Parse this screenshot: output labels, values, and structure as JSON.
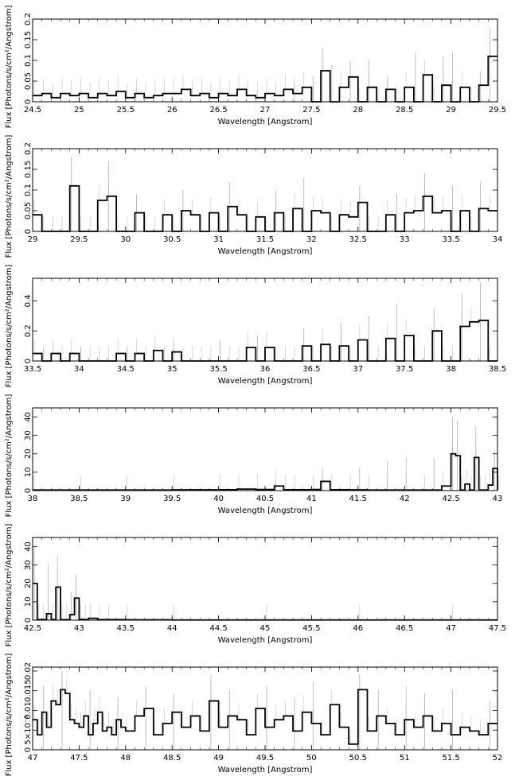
{
  "chart_data": [
    {
      "type": "line",
      "xlabel": "Wavelength [Angstrom]",
      "ylabel": "Flux [Photons/s/cm²/Angstrom]",
      "xlim": [
        24.5,
        29.5
      ],
      "ylim": [
        0,
        0.2
      ],
      "xticks": [
        "24.5",
        "25",
        "25.5",
        "26",
        "26.5",
        "27",
        "27.5",
        "28",
        "28.5",
        "29",
        "29.5"
      ],
      "yticks": [
        "0",
        "0.05",
        "0.1",
        "0.15",
        "0.2"
      ],
      "series": [
        {
          "x": [
            24.5,
            24.6,
            24.7,
            24.8,
            24.9,
            25.0,
            25.1,
            25.2,
            25.3,
            25.4,
            25.5,
            25.6,
            25.7,
            25.8,
            25.9,
            26.0,
            26.1,
            26.2,
            26.3,
            26.4,
            26.5,
            26.6,
            26.7,
            26.8,
            26.9,
            27.0,
            27.1,
            27.2,
            27.3,
            27.4,
            27.5,
            27.6,
            27.7,
            27.8,
            27.9,
            28.0,
            28.1,
            28.2,
            28.3,
            28.4,
            28.5,
            28.6,
            28.7,
            28.8,
            28.9,
            29.0,
            29.1,
            29.2,
            29.3,
            29.4
          ],
          "y": [
            0.015,
            0.02,
            0.01,
            0.02,
            0.015,
            0.02,
            0.01,
            0.02,
            0.015,
            0.025,
            0.01,
            0.02,
            0.01,
            0.015,
            0.02,
            0.02,
            0.03,
            0.015,
            0.02,
            0.01,
            0.02,
            0.015,
            0.03,
            0.015,
            0.01,
            0.02,
            0.015,
            0.03,
            0.02,
            0.035,
            0.0,
            0.075,
            0.0,
            0.035,
            0.06,
            0.0,
            0.035,
            0.0,
            0.03,
            0.0,
            0.035,
            0.0,
            0.065,
            0.0,
            0.04,
            0.0,
            0.035,
            0.0,
            0.04,
            0.11
          ]
        }
      ],
      "errors": {
        "x": [
          27.3,
          27.5,
          27.6,
          27.7,
          27.9,
          28.1,
          28.3,
          28.6,
          28.9,
          29.0,
          29.3,
          29.4
        ],
        "upper": [
          0.045,
          0.06,
          0.13,
          0.09,
          0.1,
          0.1,
          0.06,
          0.12,
          0.11,
          0.12,
          0.07,
          0.18
        ]
      }
    },
    {
      "type": "line",
      "xlabel": "Wavelength [Angstrom]",
      "ylabel": "Flux [Photons/s/cm²/Angstrom]",
      "xlim": [
        29,
        34
      ],
      "ylim": [
        0,
        0.2
      ],
      "xticks": [
        "29",
        "29.5",
        "30",
        "30.5",
        "31",
        "31.5",
        "32",
        "32.5",
        "33",
        "33.5",
        "34"
      ],
      "yticks": [
        "0",
        "0.05",
        "0.1",
        "0.15",
        "0.2"
      ],
      "series": [
        {
          "x": [
            29.0,
            29.1,
            29.2,
            29.3,
            29.4,
            29.5,
            29.6,
            29.7,
            29.8,
            29.9,
            30.0,
            30.1,
            30.2,
            30.3,
            30.4,
            30.5,
            30.6,
            30.7,
            30.8,
            30.9,
            31.0,
            31.1,
            31.2,
            31.3,
            31.4,
            31.5,
            31.6,
            31.7,
            31.8,
            31.9,
            32.0,
            32.1,
            32.2,
            32.3,
            32.4,
            32.5,
            32.6,
            32.7,
            32.8,
            32.9,
            33.0,
            33.1,
            33.2,
            33.3,
            33.4,
            33.5,
            33.6,
            33.7,
            33.8,
            33.9
          ],
          "y": [
            0.04,
            0.0,
            0.0,
            0.0,
            0.11,
            0.0,
            0.0,
            0.075,
            0.085,
            0.0,
            0.0,
            0.045,
            0.0,
            0.0,
            0.04,
            0.0,
            0.05,
            0.04,
            0.0,
            0.045,
            0.0,
            0.06,
            0.04,
            0.0,
            0.035,
            0.0,
            0.045,
            0.0,
            0.055,
            0.0,
            0.05,
            0.045,
            0.0,
            0.04,
            0.035,
            0.07,
            0.0,
            0.0,
            0.04,
            0.0,
            0.045,
            0.05,
            0.085,
            0.045,
            0.05,
            0.0,
            0.05,
            0.0,
            0.055,
            0.05
          ]
        }
      ],
      "errors": {
        "x": [
          29.4,
          29.8,
          30.1,
          30.6,
          31.1,
          31.6,
          31.9,
          32.5,
          32.9,
          33.2,
          33.5,
          33.8
        ],
        "upper": [
          0.18,
          0.17,
          0.09,
          0.1,
          0.12,
          0.1,
          0.13,
          0.11,
          0.09,
          0.14,
          0.11,
          0.12
        ]
      }
    },
    {
      "type": "line",
      "xlabel": "Wavelength [Angstrom]",
      "ylabel": "Flux [Photons/s/cm²/Angstrom]",
      "xlim": [
        33.5,
        38.5
      ],
      "ylim": [
        0,
        0.55
      ],
      "xticks": [
        "33.5",
        "34",
        "34.5",
        "35",
        "35.5",
        "36",
        "36.5",
        "37",
        "37.5",
        "38",
        "38.5"
      ],
      "yticks": [
        "0",
        "0.2",
        "0.4"
      ],
      "series": [
        {
          "x": [
            33.5,
            33.6,
            33.7,
            33.8,
            33.9,
            34.0,
            34.1,
            34.2,
            34.3,
            34.4,
            34.5,
            34.6,
            34.7,
            34.8,
            34.9,
            35.0,
            35.1,
            35.2,
            35.3,
            35.4,
            35.5,
            35.6,
            35.7,
            35.8,
            35.9,
            36.0,
            36.1,
            36.2,
            36.3,
            36.4,
            36.5,
            36.6,
            36.7,
            36.8,
            36.9,
            37.0,
            37.1,
            37.2,
            37.3,
            37.4,
            37.5,
            37.6,
            37.7,
            37.8,
            37.9,
            38.0,
            38.1,
            38.2,
            38.3,
            38.4
          ],
          "y": [
            0.05,
            0.0,
            0.05,
            0.0,
            0.05,
            0.0,
            0.0,
            0.0,
            0.0,
            0.05,
            0.0,
            0.05,
            0.0,
            0.07,
            0.0,
            0.06,
            0.0,
            0.0,
            0.0,
            0.0,
            0.0,
            0.0,
            0.0,
            0.09,
            0.0,
            0.09,
            0.0,
            0.0,
            0.0,
            0.1,
            0.0,
            0.11,
            0.0,
            0.1,
            0.0,
            0.14,
            0.0,
            0.0,
            0.15,
            0.0,
            0.17,
            0.0,
            0.0,
            0.2,
            0.0,
            0.0,
            0.23,
            0.26,
            0.27,
            0.0
          ]
        }
      ],
      "errors": {
        "x": [
          33.6,
          34.0,
          34.5,
          35.0,
          35.5,
          35.9,
          36.4,
          36.8,
          37.1,
          37.4,
          37.8,
          38.1,
          38.3
        ],
        "upper": [
          0.08,
          0.09,
          0.1,
          0.12,
          0.14,
          0.17,
          0.22,
          0.26,
          0.3,
          0.38,
          0.35,
          0.45,
          0.52
        ]
      }
    },
    {
      "type": "line",
      "xlabel": "Wavelength [Angstrom]",
      "ylabel": "Flux [Photons/s/cm²/Angstrom]",
      "xlim": [
        38,
        43
      ],
      "ylim": [
        0,
        45
      ],
      "xticks": [
        "38",
        "38.5",
        "39",
        "39.5",
        "40",
        "40.5",
        "41",
        "41.5",
        "42",
        "42.5",
        "43"
      ],
      "yticks": [
        "0",
        "10",
        "20",
        "30",
        "40"
      ],
      "series": [
        {
          "x": [
            38.0,
            38.5,
            39.0,
            39.5,
            40.0,
            40.2,
            40.4,
            40.6,
            40.7,
            40.8,
            41.0,
            41.1,
            41.2,
            41.4,
            41.6,
            41.8,
            42.0,
            42.2,
            42.4,
            42.5,
            42.55,
            42.6,
            42.65,
            42.7,
            42.75,
            42.8,
            42.85,
            42.9,
            42.95,
            43.0
          ],
          "y": [
            0.3,
            0.3,
            0.3,
            0.4,
            0.5,
            0.8,
            0.6,
            2.5,
            0.5,
            0.5,
            0.6,
            5.0,
            0.5,
            0.4,
            0.3,
            0.3,
            0.3,
            0.3,
            2.5,
            20.0,
            19.0,
            0.3,
            3.5,
            0.3,
            18.0,
            0.3,
            0.3,
            3.0,
            12.0,
            0.3
          ]
        }
      ],
      "errors": {
        "x": [
          40.6,
          41.1,
          41.5,
          41.8,
          42.0,
          42.3,
          42.5,
          42.55,
          42.75,
          42.95
        ],
        "upper": [
          4,
          10,
          12,
          16,
          18,
          18,
          40,
          38,
          35,
          22
        ]
      }
    },
    {
      "type": "line",
      "xlabel": "Wavelength [Angstrom]",
      "ylabel": "Flux [Photons/s/cm²/Angstrom]",
      "xlim": [
        42.5,
        47.5
      ],
      "ylim": [
        0,
        45
      ],
      "xticks": [
        "42.5",
        "43",
        "43.5",
        "44",
        "44.5",
        "45",
        "45.5",
        "46",
        "46.5",
        "47",
        "47.5"
      ],
      "yticks": [
        "0",
        "10",
        "20",
        "30",
        "40"
      ],
      "series": [
        {
          "x": [
            42.5,
            42.55,
            42.6,
            42.65,
            42.7,
            42.75,
            42.8,
            42.85,
            42.9,
            42.95,
            43.0,
            43.05,
            43.1,
            43.2,
            43.3,
            43.5,
            44.0,
            45.0,
            46.0,
            47.0
          ],
          "y": [
            20.0,
            0.3,
            0.3,
            3.5,
            0.3,
            18.0,
            0.3,
            0.3,
            3.0,
            12.0,
            0.5,
            0.3,
            1.0,
            0.3,
            0.3,
            0.2,
            0.1,
            0.1,
            0.1,
            0.1
          ]
        }
      ],
      "errors": {
        "x": [
          42.5,
          42.65,
          42.75,
          42.9,
          42.95
        ],
        "upper": [
          40,
          30,
          35,
          15,
          25
        ]
      }
    },
    {
      "type": "line",
      "xlabel": "Wavelength [Angstrom]",
      "ylabel": "Flux [Photons/s/cm²/Angstrom]",
      "xlim": [
        47,
        52
      ],
      "ylim": [
        0,
        0.022
      ],
      "xticks": [
        "47",
        "47.5",
        "48",
        "48.5",
        "49",
        "49.5",
        "50",
        "50.5",
        "51",
        "51.5",
        "52"
      ],
      "yticks": [
        "0",
        "5×10⁻³",
        "0.01",
        "0.015",
        "0.02"
      ],
      "series": [
        {
          "x": [
            47.0,
            47.05,
            47.1,
            47.15,
            47.2,
            47.25,
            47.3,
            47.35,
            47.4,
            47.45,
            47.5,
            47.55,
            47.6,
            47.65,
            47.7,
            47.75,
            47.8,
            47.85,
            47.9,
            47.95,
            48.0,
            48.1,
            48.2,
            48.3,
            48.4,
            48.5,
            48.6,
            48.7,
            48.8,
            48.9,
            49.0,
            49.1,
            49.2,
            49.3,
            49.4,
            49.5,
            49.6,
            49.7,
            49.8,
            49.9,
            50.0,
            50.1,
            50.2,
            50.3,
            50.4,
            50.5,
            50.6,
            50.7,
            50.8,
            50.9,
            51.0,
            51.1,
            51.2,
            51.3,
            51.4,
            51.5,
            51.6,
            51.7,
            51.8,
            51.9
          ],
          "y": [
            0.008,
            0.004,
            0.01,
            0.006,
            0.013,
            0.012,
            0.016,
            0.015,
            0.008,
            0.007,
            0.006,
            0.009,
            0.004,
            0.007,
            0.01,
            0.005,
            0.006,
            0.004,
            0.008,
            0.006,
            0.005,
            0.009,
            0.011,
            0.004,
            0.007,
            0.01,
            0.006,
            0.009,
            0.005,
            0.013,
            0.006,
            0.009,
            0.008,
            0.004,
            0.011,
            0.006,
            0.008,
            0.009,
            0.005,
            0.01,
            0.007,
            0.004,
            0.012,
            0.006,
            0.0015,
            0.016,
            0.005,
            0.009,
            0.007,
            0.004,
            0.008,
            0.006,
            0.009,
            0.005,
            0.007,
            0.004,
            0.006,
            0.005,
            0.004,
            0.007
          ]
        }
      ],
      "errors": {
        "x": [
          47.1,
          47.3,
          47.6,
          47.9,
          48.2,
          48.5,
          48.9,
          49.1,
          49.5,
          49.8,
          50.0,
          50.5,
          50.7,
          51.0,
          51.2,
          51.5,
          51.9
        ],
        "upper": [
          0.017,
          0.021,
          0.016,
          0.014,
          0.017,
          0.015,
          0.02,
          0.016,
          0.017,
          0.014,
          0.018,
          0.02,
          0.016,
          0.017,
          0.015,
          0.016,
          0.013
        ]
      }
    }
  ]
}
